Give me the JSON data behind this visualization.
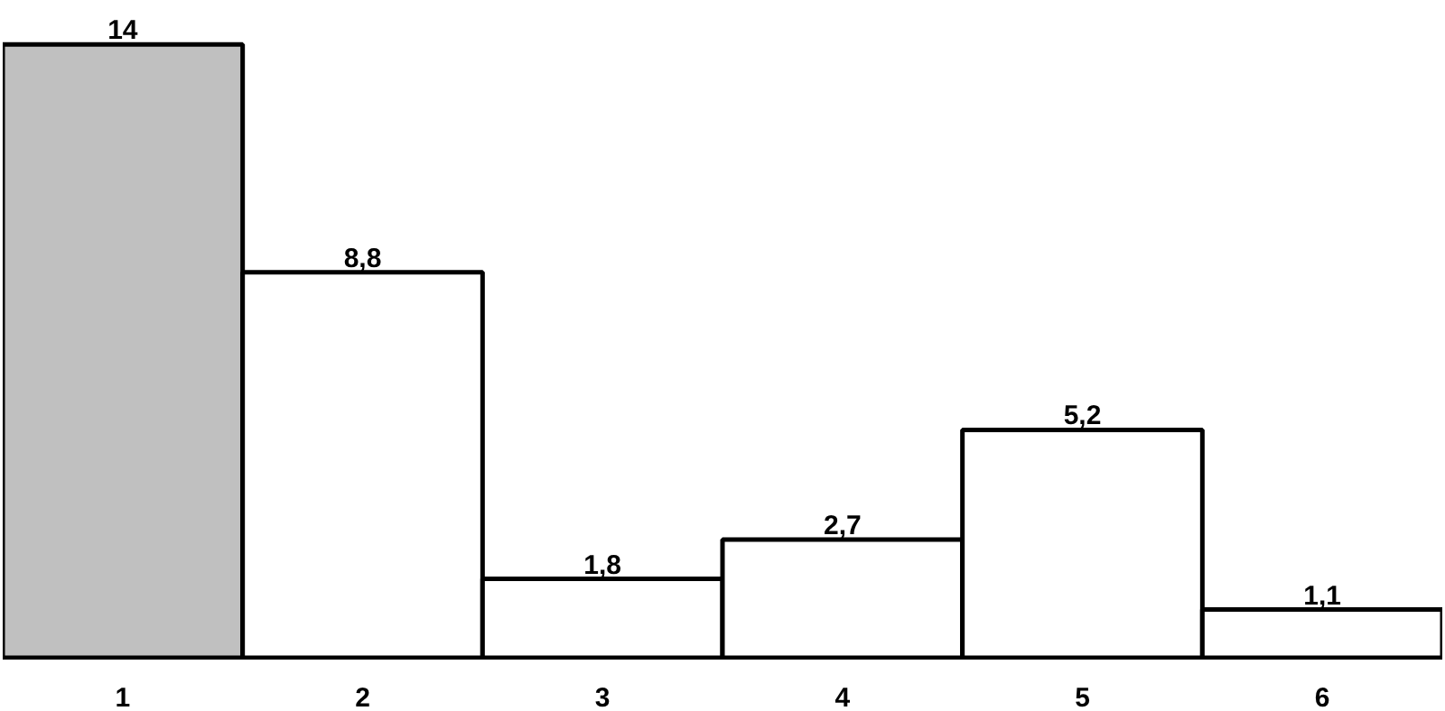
{
  "chart_data": {
    "type": "bar",
    "categories": [
      "1",
      "2",
      "3",
      "4",
      "5",
      "6"
    ],
    "values": [
      14,
      8.8,
      1.8,
      2.7,
      5.2,
      1.1
    ],
    "value_labels": [
      "14",
      "8,8",
      "1,8",
      "2,7",
      "5,2",
      "1,1"
    ],
    "colors": [
      "#c0c0c0",
      "#ffffff",
      "#ffffff",
      "#ffffff",
      "#ffffff",
      "#ffffff"
    ],
    "grid": false
  }
}
